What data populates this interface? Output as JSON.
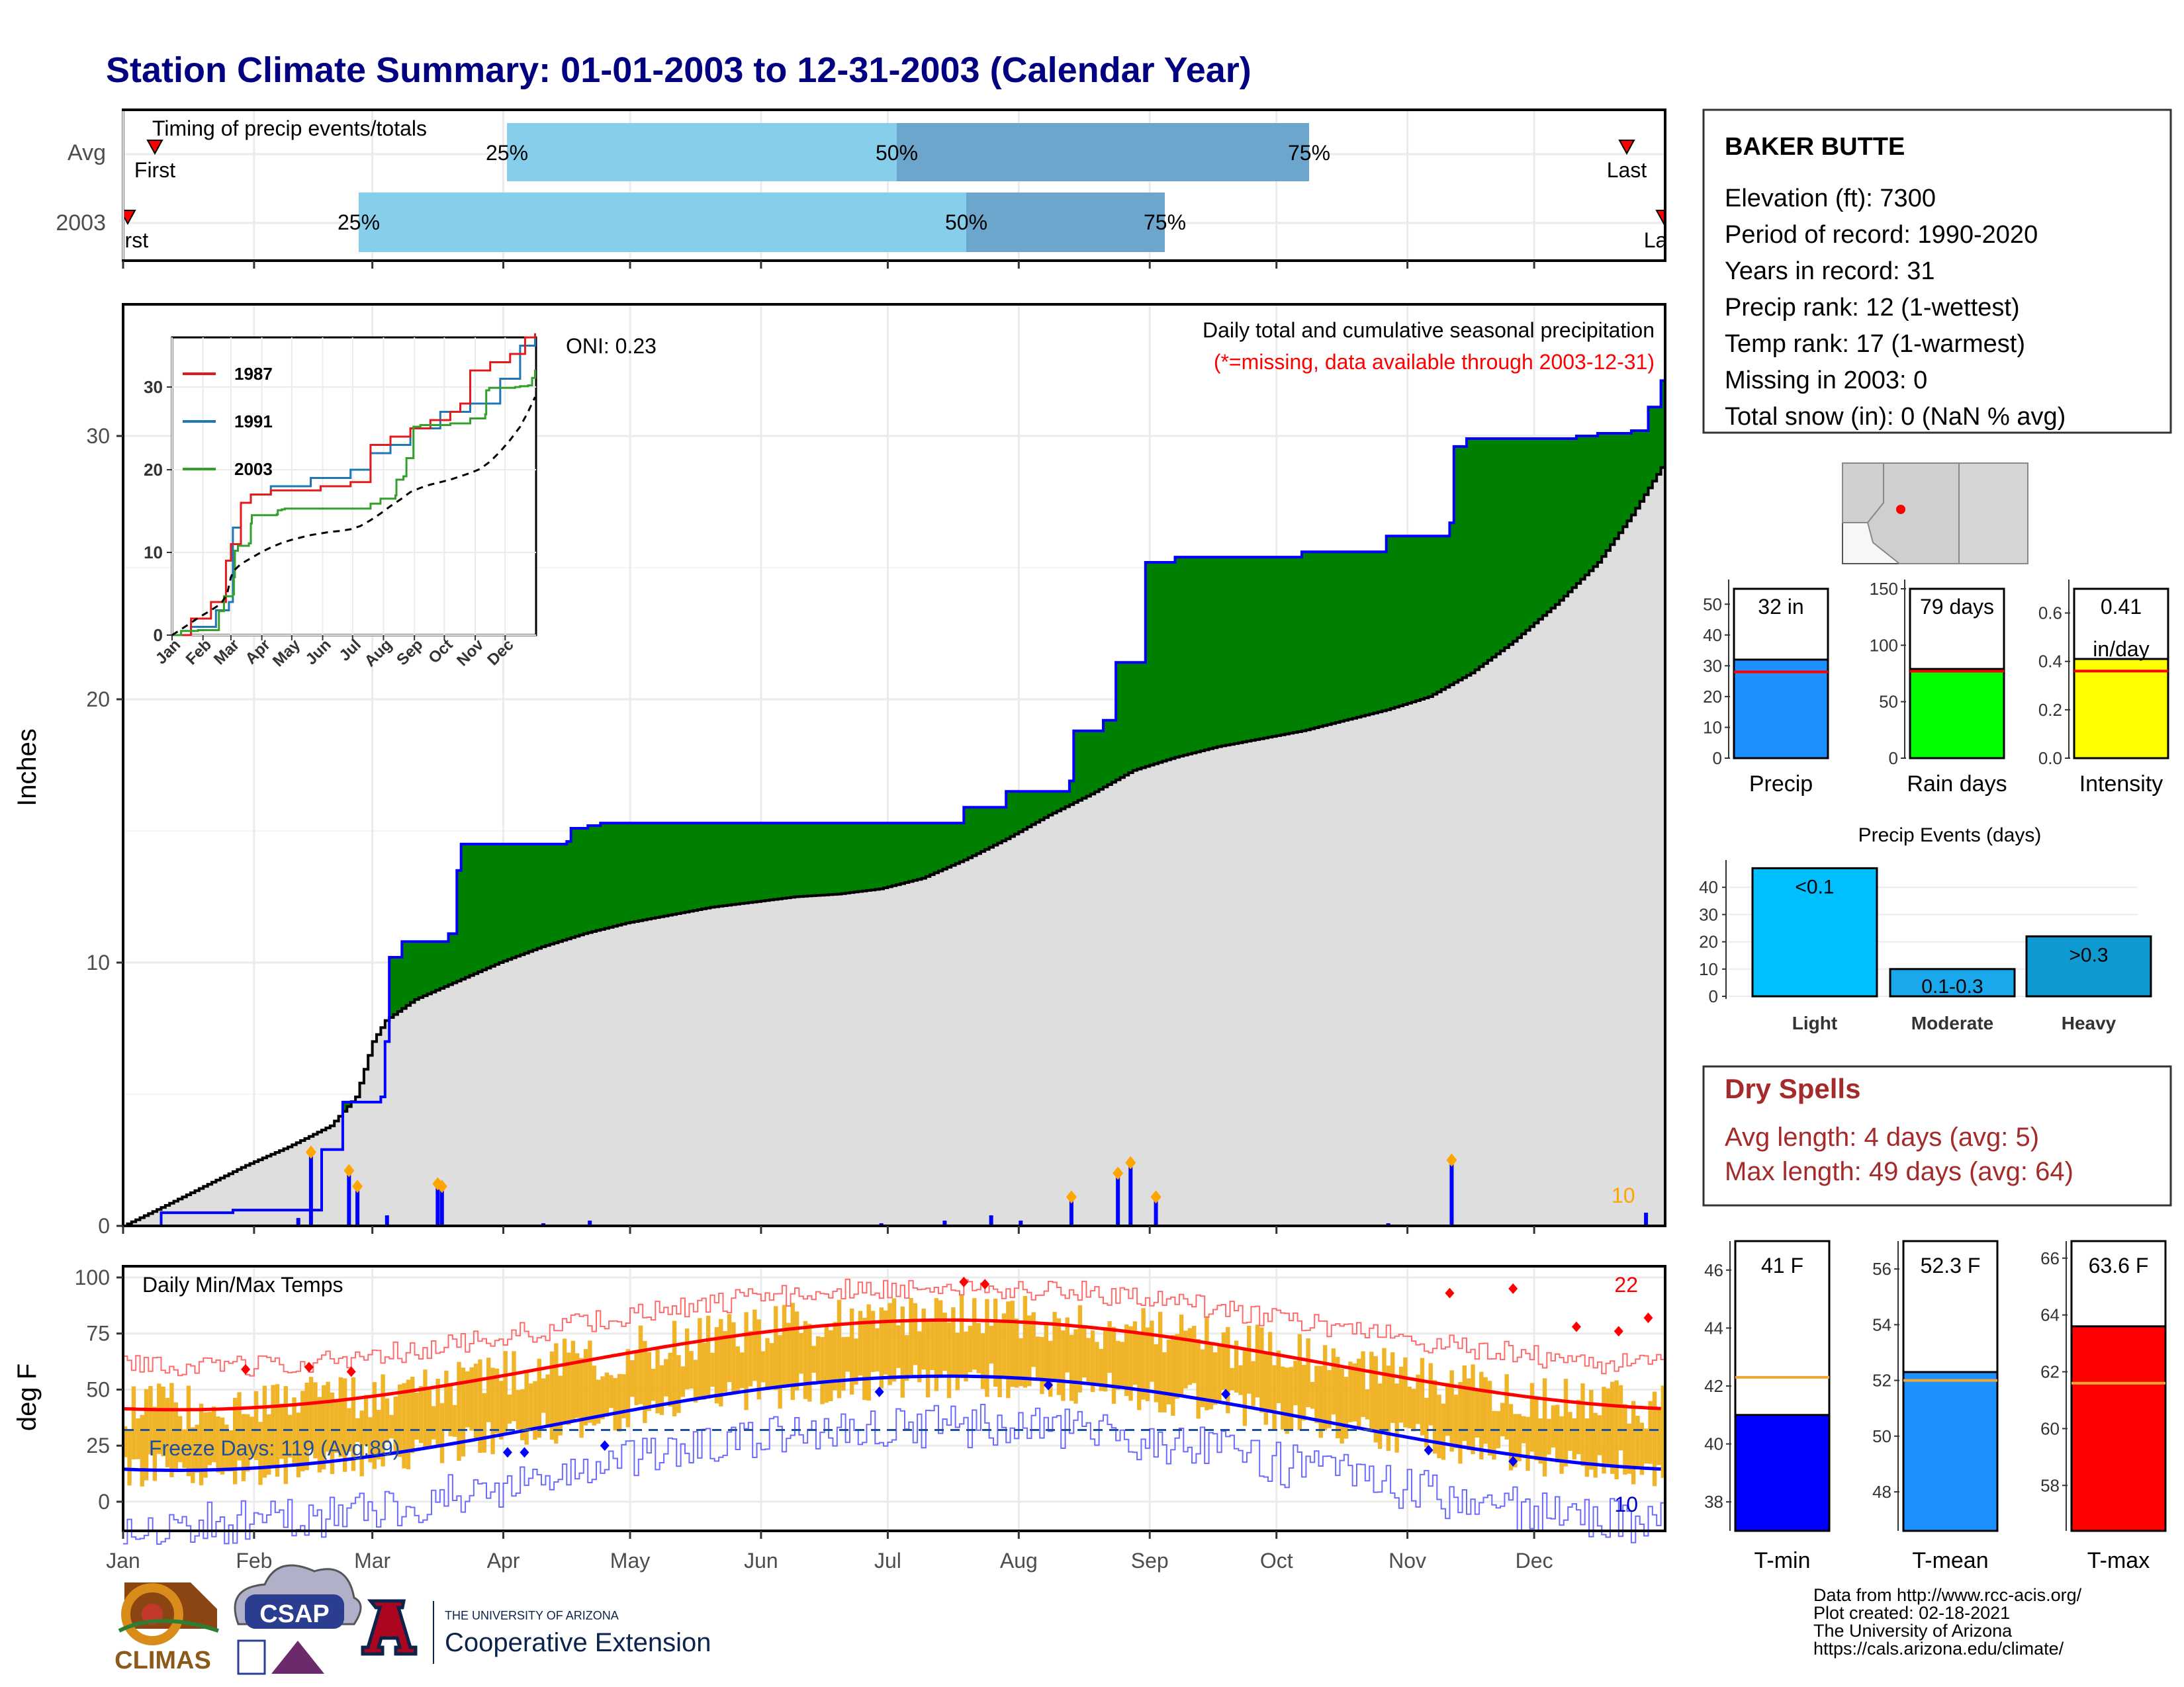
{
  "title": "Station Climate Summary: 01-01-2003 to 12-31-2003 (Calendar Year)",
  "months": [
    "Jan",
    "Feb",
    "Mar",
    "Apr",
    "May",
    "Jun",
    "Jul",
    "Aug",
    "Sep",
    "Oct",
    "Nov",
    "Dec"
  ],
  "timing": {
    "label": "Timing of precip events/totals",
    "rows": [
      {
        "name": "Avg",
        "first": "First",
        "last": "Last",
        "p25": "25%",
        "p50": "50%",
        "p75": "75%"
      },
      {
        "name": "2003",
        "first": "First",
        "last": "Last",
        "p25": "25%",
        "p50": "50%",
        "p75": "75%"
      }
    ]
  },
  "precip_panel": {
    "ylabel": "Inches",
    "oni": "ONI: 0.23",
    "caption": "Daily total and cumulative seasonal precipitation",
    "missing_note": "(*=missing, data available through 2003-12-31)",
    "count_label": "10",
    "yticks": [
      "0",
      "10",
      "20",
      "30"
    ]
  },
  "inset": {
    "legend": [
      "1987",
      "1991",
      "2003"
    ],
    "yticks": [
      "0",
      "10",
      "20",
      "30"
    ],
    "xticks": [
      "Jan",
      "Feb",
      "Mar",
      "Apr",
      "May",
      "Jun",
      "Jul",
      "Aug",
      "Sep",
      "Oct",
      "Nov",
      "Dec"
    ]
  },
  "temp_panel": {
    "ylabel": "deg F",
    "label": "Daily Min/Max Temps",
    "freeze": "Freeze Days: 119 (Avg:89)",
    "hot_count": "22",
    "cold_count": "10",
    "yticks": [
      "0",
      "25",
      "50",
      "75",
      "100"
    ]
  },
  "station": {
    "name": "BAKER BUTTE",
    "lines": [
      "Elevation (ft): 7300",
      "Period of record: 1990-2020",
      "Years in record: 31",
      "Precip rank: 12 (1-wettest)",
      "Temp rank: 17 (1-warmest)",
      "Missing in 2003: 0",
      "Total snow (in): 0 (NaN % avg)"
    ]
  },
  "mini_bars": [
    {
      "name": "Precip",
      "label": "32 in",
      "value": 32,
      "avg": 28,
      "ymax": 55,
      "ticks": [
        "0",
        "10",
        "20",
        "30",
        "40",
        "50"
      ],
      "color": "#1E90FF"
    },
    {
      "name": "Rain days",
      "label": "79 days",
      "value": 79,
      "avg": 77,
      "ymax": 150,
      "ticks": [
        "0",
        "50",
        "100",
        "150"
      ],
      "color": "#00FF00"
    },
    {
      "name": "Intensity",
      "label": "0.41",
      "label2": "in/day",
      "value": 0.41,
      "avg": 0.36,
      "ymax": 0.7,
      "ticks": [
        "0.0",
        "0.2",
        "0.4",
        "0.6"
      ],
      "color": "#FFFF00"
    }
  ],
  "events": {
    "title": "Precip Events (days)",
    "categories": [
      "Light",
      "Moderate",
      "Heavy"
    ],
    "labels": [
      "<0.1",
      "0.1-0.3",
      ">0.3"
    ],
    "values": [
      47,
      10,
      22
    ],
    "ticks": [
      "0",
      "10",
      "20",
      "30",
      "40"
    ]
  },
  "dry_spells": {
    "title": "Dry Spells",
    "avg": "Avg length: 4 days (avg: 5)",
    "max": "Max length: 49 days (avg: 64)"
  },
  "temp_bars": [
    {
      "name": "T-min",
      "label": "41 F",
      "value": 41,
      "avg": 42.3,
      "ymin": 37,
      "ymax": 47,
      "ticks": [
        "38",
        "40",
        "42",
        "44",
        "46"
      ],
      "color": "#0000FF"
    },
    {
      "name": "T-mean",
      "label": "52.3 F",
      "value": 52.3,
      "avg": 52,
      "ymin": 46.6,
      "ymax": 57,
      "ticks": [
        "48",
        "50",
        "52",
        "54",
        "56"
      ],
      "color": "#1E90FF"
    },
    {
      "name": "T-max",
      "label": "63.6 F",
      "value": 63.6,
      "avg": 61.6,
      "ymin": 56.4,
      "ymax": 66.6,
      "ticks": [
        "58",
        "60",
        "62",
        "64",
        "66"
      ],
      "color": "#FF0000"
    }
  ],
  "footer": {
    "lines": [
      "Data from http://www.rcc-acis.org/",
      "Plot created: 02-18-2021",
      "The University of Arizona",
      "https://cals.arizona.edu/climate/"
    ],
    "logo1": "CLIMAS",
    "logo2": "CSAP",
    "ua_line1": "THE UNIVERSITY OF ARIZONA",
    "ua_line2": "Cooperative Extension"
  },
  "chart_data": {
    "type": "area",
    "xlim": [
      1,
      365
    ],
    "ylim": [
      0,
      35
    ],
    "series": [
      {
        "name": "2003",
        "values": [
          [
            1,
            0
          ],
          [
            10,
            0.5
          ],
          [
            27,
            0.6
          ],
          [
            45,
            0.6
          ],
          [
            48,
            2.9
          ],
          [
            53,
            4.7
          ],
          [
            62,
            4.9
          ],
          [
            63,
            7
          ],
          [
            64,
            10.2
          ],
          [
            67,
            10.8
          ],
          [
            78,
            11.1
          ],
          [
            80,
            13.5
          ],
          [
            81,
            14.5
          ],
          [
            106,
            14.6
          ],
          [
            107,
            15.1
          ],
          [
            111,
            15.2
          ],
          [
            114,
            15.3
          ],
          [
            180,
            15.3
          ],
          [
            200,
            15.9
          ],
          [
            210,
            16.5
          ],
          [
            225,
            16.9
          ],
          [
            226,
            18.8
          ],
          [
            233,
            19.2
          ],
          [
            236,
            21.4
          ],
          [
            243,
            25.2
          ],
          [
            250,
            25.4
          ],
          [
            280,
            25.6
          ],
          [
            300,
            26.2
          ],
          [
            315,
            26.7
          ],
          [
            316,
            29.6
          ],
          [
            319,
            29.9
          ],
          [
            345,
            30.0
          ],
          [
            350,
            30.1
          ],
          [
            358,
            30.2
          ],
          [
            362,
            31.1
          ],
          [
            365,
            32.1
          ]
        ]
      },
      {
        "name": "Average",
        "values": [
          [
            1,
            0
          ],
          [
            10,
            0.7
          ],
          [
            20,
            1.5
          ],
          [
            30,
            2.3
          ],
          [
            40,
            3.0
          ],
          [
            50,
            3.8
          ],
          [
            56,
            4.9
          ],
          [
            60,
            7.0
          ],
          [
            63,
            7.8
          ],
          [
            70,
            8.6
          ],
          [
            80,
            9.3
          ],
          [
            90,
            10.0
          ],
          [
            100,
            10.6
          ],
          [
            110,
            11.1
          ],
          [
            120,
            11.5
          ],
          [
            130,
            11.8
          ],
          [
            140,
            12.1
          ],
          [
            150,
            12.3
          ],
          [
            160,
            12.5
          ],
          [
            170,
            12.6
          ],
          [
            180,
            12.8
          ],
          [
            190,
            13.2
          ],
          [
            200,
            13.9
          ],
          [
            210,
            14.7
          ],
          [
            220,
            15.6
          ],
          [
            230,
            16.4
          ],
          [
            240,
            17.3
          ],
          [
            250,
            17.8
          ],
          [
            260,
            18.2
          ],
          [
            270,
            18.5
          ],
          [
            280,
            18.8
          ],
          [
            290,
            19.2
          ],
          [
            300,
            19.6
          ],
          [
            310,
            20.1
          ],
          [
            320,
            21.0
          ],
          [
            330,
            22.2
          ],
          [
            340,
            23.6
          ],
          [
            350,
            25.2
          ],
          [
            358,
            27.0
          ],
          [
            365,
            28.8
          ]
        ]
      }
    ],
    "daily_precip": [
      [
        42,
        0.3
      ],
      [
        45,
        2.8
      ],
      [
        54,
        2.1
      ],
      [
        56,
        1.5
      ],
      [
        63,
        0.4
      ],
      [
        75,
        1.6
      ],
      [
        76,
        1.5
      ],
      [
        100,
        0.1
      ],
      [
        111,
        0.2
      ],
      [
        180,
        0.1
      ],
      [
        195,
        0.2
      ],
      [
        206,
        0.4
      ],
      [
        213,
        0.2
      ],
      [
        225,
        1.1
      ],
      [
        236,
        2.0
      ],
      [
        239,
        2.4
      ],
      [
        245,
        1.1
      ],
      [
        300,
        0.1
      ],
      [
        315,
        2.5
      ],
      [
        361,
        0.5
      ]
    ],
    "temp_records": {
      "hot_days": 22,
      "cold_days": 10,
      "freeze_threshold": 32
    }
  }
}
